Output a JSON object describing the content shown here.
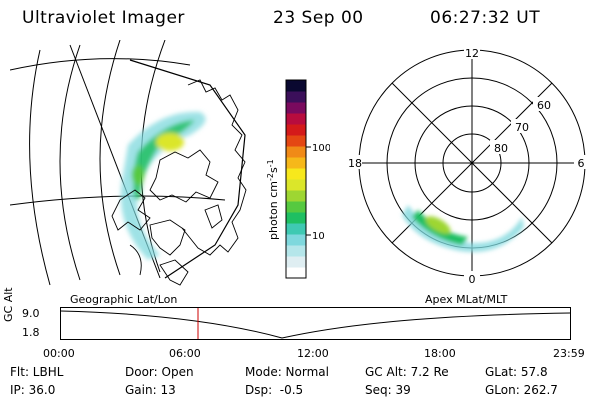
{
  "header": {
    "instrument": "Ultraviolet Imager",
    "date": "23 Sep 00",
    "time": "06:27:32 UT"
  },
  "colorbar": {
    "ticks": [
      "100",
      "10"
    ],
    "unit_label": "photon cm",
    "unit_exp1": "-2",
    "unit_mid": "s",
    "unit_exp2": "-1",
    "colors": [
      "#ffffff",
      "#dfeef2",
      "#b5e6ea",
      "#7fd8dd",
      "#3fc9b2",
      "#1fbf62",
      "#56c940",
      "#9ed632",
      "#dbe62a",
      "#f7e81c",
      "#f6b81a",
      "#f08a17",
      "#e44713",
      "#d41a1a",
      "#b80c3e",
      "#7a0a5e",
      "#3b0f5a",
      "#0a0830"
    ]
  },
  "polar": {
    "labels": {
      "top": "12",
      "bottom": "0",
      "left": "18",
      "right": "6"
    },
    "rings": [
      "60",
      "70",
      "80"
    ]
  },
  "timeline": {
    "left_title": "Geographic Lat/Lon",
    "right_title": "Apex MLat/MLT",
    "axis_label": "GC Alt",
    "y_top": "9.0",
    "y_bottom": "1.8",
    "ticks": [
      "00:00",
      "06:00",
      "12:00",
      "18:00",
      "23:59"
    ],
    "current_time_hours": 6.46
  },
  "info": {
    "row1": [
      "Flt: LBHL",
      "Door: Open",
      "Mode: Normal",
      "GC Alt: 7.2 Re",
      "GLat: 57.8"
    ],
    "row2": [
      "IP: 36.0",
      "Gain: 13",
      "Dsp:  -0.5",
      "Seq: 39",
      "GLon: 262.7"
    ]
  }
}
